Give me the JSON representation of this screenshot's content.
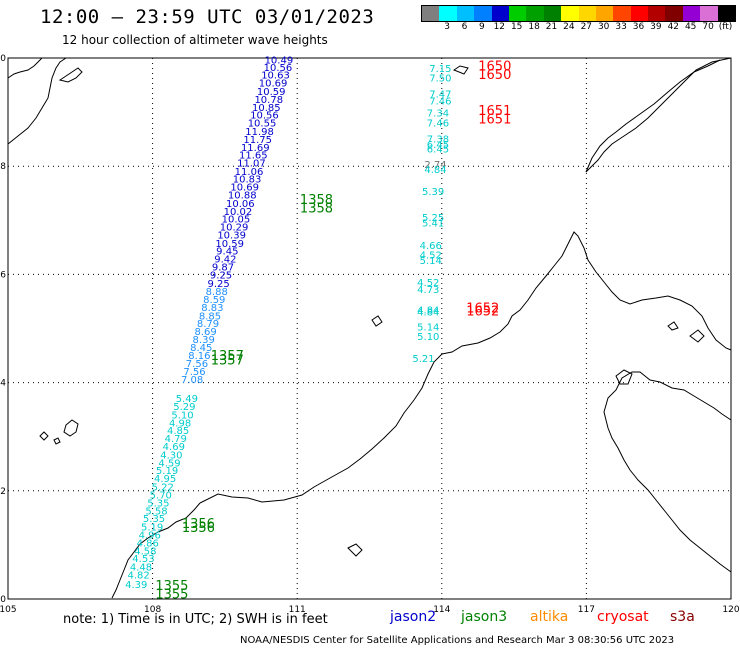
{
  "header": {
    "title": "12:00 – 23:59 UTC 03/01/2023",
    "subtitle": "12 hour collection of altimeter wave heights"
  },
  "legend": {
    "unit": "(ft)",
    "swatches": [
      {
        "label": "",
        "color": "#7f7f7f"
      },
      {
        "label": "3",
        "color": "#00ffff"
      },
      {
        "label": "6",
        "color": "#00bfff"
      },
      {
        "label": "9",
        "color": "#007fff"
      },
      {
        "label": "12",
        "color": "#0000cd"
      },
      {
        "label": "15",
        "color": "#00cd00"
      },
      {
        "label": "18",
        "color": "#00a000"
      },
      {
        "label": "21",
        "color": "#008000"
      },
      {
        "label": "24",
        "color": "#ffff00"
      },
      {
        "label": "27",
        "color": "#ffd700"
      },
      {
        "label": "30",
        "color": "#ffa500"
      },
      {
        "label": "33",
        "color": "#ff4500"
      },
      {
        "label": "36",
        "color": "#ff0000"
      },
      {
        "label": "39",
        "color": "#b20000"
      },
      {
        "label": "42",
        "color": "#800000"
      },
      {
        "label": "45",
        "color": "#9400d3"
      },
      {
        "label": "70",
        "color": "#da70d6"
      },
      {
        "label": "",
        "color": "#000000"
      }
    ],
    "ticks": [
      "3",
      "6",
      "9",
      "12",
      "15",
      "18",
      "21",
      "24",
      "27",
      "30",
      "33",
      "36",
      "39",
      "42",
      "45",
      "70",
      "(ft)"
    ]
  },
  "map": {
    "lon_ticks": [
      "105",
      "108",
      "111",
      "114",
      "117",
      "120"
    ],
    "lat_ticks": [
      "0",
      "2",
      "4",
      "6",
      "8",
      "10"
    ],
    "lon_range": [
      105,
      120
    ],
    "lat_range": [
      0,
      10
    ],
    "colors": {
      "jason2": "#0000cd",
      "jason3": "#008000",
      "altika": "#ff8c00",
      "cryosat": "#ff0000",
      "s3a": "#8b0000",
      "cyan": "#00cdcd",
      "blue": "#1e90ff",
      "gray": "#707070"
    },
    "track1": [
      {
        "lon": 110.62,
        "lat": 9.9,
        "v": "10.49",
        "c": "jason2"
      },
      {
        "lon": 110.6,
        "lat": 9.76,
        "v": "10.56",
        "c": "jason2"
      },
      {
        "lon": 110.55,
        "lat": 9.62,
        "v": "10.63",
        "c": "jason2"
      },
      {
        "lon": 110.5,
        "lat": 9.47,
        "v": "10.69",
        "c": "jason2"
      },
      {
        "lon": 110.46,
        "lat": 9.32,
        "v": "10.59",
        "c": "jason2"
      },
      {
        "lon": 110.41,
        "lat": 9.17,
        "v": "10.78",
        "c": "jason2"
      },
      {
        "lon": 110.36,
        "lat": 9.02,
        "v": "10.85",
        "c": "jason2"
      },
      {
        "lon": 110.32,
        "lat": 8.88,
        "v": "10.56",
        "c": "jason2"
      },
      {
        "lon": 110.27,
        "lat": 8.73,
        "v": "10.55",
        "c": "jason2"
      },
      {
        "lon": 110.22,
        "lat": 8.58,
        "v": "11.98",
        "c": "jason2"
      },
      {
        "lon": 110.18,
        "lat": 8.43,
        "v": "11.75",
        "c": "jason2"
      },
      {
        "lon": 110.13,
        "lat": 8.28,
        "v": "11.69",
        "c": "jason2"
      },
      {
        "lon": 110.09,
        "lat": 8.14,
        "v": "11.65",
        "c": "jason2"
      },
      {
        "lon": 110.05,
        "lat": 7.99,
        "v": "11.07",
        "c": "jason2"
      },
      {
        "lon": 110.0,
        "lat": 7.84,
        "v": "11.06",
        "c": "jason2"
      },
      {
        "lon": 109.96,
        "lat": 7.7,
        "v": "10.83",
        "c": "jason2"
      },
      {
        "lon": 109.91,
        "lat": 7.55,
        "v": "10.69",
        "c": "jason2"
      },
      {
        "lon": 109.86,
        "lat": 7.4,
        "v": "10.88",
        "c": "jason2"
      },
      {
        "lon": 109.82,
        "lat": 7.25,
        "v": "10.06",
        "c": "jason2"
      },
      {
        "lon": 109.77,
        "lat": 7.1,
        "v": "10.02",
        "c": "jason2"
      },
      {
        "lon": 109.73,
        "lat": 6.96,
        "v": "10.05",
        "c": "jason2"
      },
      {
        "lon": 109.69,
        "lat": 6.81,
        "v": "10.29",
        "c": "jason2"
      },
      {
        "lon": 109.64,
        "lat": 6.66,
        "v": "10.39",
        "c": "jason2"
      },
      {
        "lon": 109.6,
        "lat": 6.51,
        "v": "10.59",
        "c": "jason2"
      },
      {
        "lon": 109.55,
        "lat": 6.37,
        "v": "9.45",
        "c": "jason2"
      },
      {
        "lon": 109.51,
        "lat": 6.22,
        "v": "9.42",
        "c": "jason2"
      },
      {
        "lon": 109.46,
        "lat": 6.07,
        "v": "9.87",
        "c": "jason2"
      },
      {
        "lon": 109.42,
        "lat": 5.92,
        "v": "9.25",
        "c": "jason2"
      },
      {
        "lon": 109.37,
        "lat": 5.77,
        "v": "9.25",
        "c": "jason2"
      },
      {
        "lon": 109.33,
        "lat": 5.62,
        "v": "8.88",
        "c": "blue"
      },
      {
        "lon": 109.28,
        "lat": 5.47,
        "v": "8.59",
        "c": "blue"
      },
      {
        "lon": 109.24,
        "lat": 5.32,
        "v": "8.83",
        "c": "blue"
      },
      {
        "lon": 109.19,
        "lat": 5.17,
        "v": "8.85",
        "c": "blue"
      },
      {
        "lon": 109.15,
        "lat": 5.03,
        "v": "8.79",
        "c": "blue"
      },
      {
        "lon": 109.1,
        "lat": 4.88,
        "v": "8.69",
        "c": "blue"
      },
      {
        "lon": 109.06,
        "lat": 4.73,
        "v": "8.39",
        "c": "blue"
      },
      {
        "lon": 109.01,
        "lat": 4.58,
        "v": "8.45",
        "c": "blue"
      },
      {
        "lon": 108.97,
        "lat": 4.44,
        "v": "8.16",
        "c": "blue"
      },
      {
        "lon": 108.92,
        "lat": 4.29,
        "v": "7.56",
        "c": "blue"
      },
      {
        "lon": 108.87,
        "lat": 4.14,
        "v": "7.56",
        "c": "blue"
      },
      {
        "lon": 108.82,
        "lat": 3.99,
        "v": "7.08",
        "c": "blue"
      },
      {
        "lon": 108.71,
        "lat": 3.64,
        "v": "5.49",
        "c": "cyan"
      },
      {
        "lon": 108.66,
        "lat": 3.49,
        "v": "5.29",
        "c": "cyan"
      },
      {
        "lon": 108.62,
        "lat": 3.34,
        "v": "5.10",
        "c": "cyan"
      },
      {
        "lon": 108.57,
        "lat": 3.19,
        "v": "4.98",
        "c": "cyan"
      },
      {
        "lon": 108.53,
        "lat": 3.05,
        "v": "4.85",
        "c": "cyan"
      },
      {
        "lon": 108.48,
        "lat": 2.9,
        "v": "4.79",
        "c": "cyan"
      },
      {
        "lon": 108.44,
        "lat": 2.75,
        "v": "4.69",
        "c": "cyan"
      },
      {
        "lon": 108.39,
        "lat": 2.6,
        "v": "4.30",
        "c": "cyan"
      },
      {
        "lon": 108.35,
        "lat": 2.45,
        "v": "4.59",
        "c": "cyan"
      },
      {
        "lon": 108.3,
        "lat": 2.31,
        "v": "5.19",
        "c": "cyan"
      },
      {
        "lon": 108.26,
        "lat": 2.16,
        "v": "4.95",
        "c": "cyan"
      },
      {
        "lon": 108.21,
        "lat": 2.01,
        "v": "5.22",
        "c": "cyan"
      },
      {
        "lon": 108.17,
        "lat": 1.86,
        "v": "5.70",
        "c": "cyan"
      },
      {
        "lon": 108.12,
        "lat": 1.71,
        "v": "5.35",
        "c": "cyan"
      },
      {
        "lon": 108.08,
        "lat": 1.56,
        "v": "5.58",
        "c": "cyan"
      },
      {
        "lon": 108.03,
        "lat": 1.42,
        "v": "5.35",
        "c": "cyan"
      },
      {
        "lon": 107.99,
        "lat": 1.27,
        "v": "5.19",
        "c": "cyan"
      },
      {
        "lon": 107.94,
        "lat": 1.12,
        "v": "4.96",
        "c": "cyan"
      },
      {
        "lon": 107.9,
        "lat": 0.97,
        "v": "4.86",
        "c": "cyan"
      },
      {
        "lon": 107.85,
        "lat": 0.82,
        "v": "4.58",
        "c": "cyan"
      },
      {
        "lon": 107.81,
        "lat": 0.68,
        "v": "4.53",
        "c": "cyan"
      },
      {
        "lon": 107.76,
        "lat": 0.53,
        "v": "4.48",
        "c": "cyan"
      },
      {
        "lon": 107.71,
        "lat": 0.38,
        "v": "4.82",
        "c": "cyan"
      },
      {
        "lon": 107.66,
        "lat": 0.2,
        "v": "4.39",
        "c": "cyan"
      }
    ],
    "track2": [
      {
        "lon": 113.97,
        "lat": 9.74,
        "v": "7.15",
        "c": "cyan"
      },
      {
        "lon": 113.97,
        "lat": 9.57,
        "v": "7.50",
        "c": "cyan"
      },
      {
        "lon": 113.97,
        "lat": 9.27,
        "v": "7.47",
        "c": "cyan"
      },
      {
        "lon": 113.97,
        "lat": 9.14,
        "v": "7.46",
        "c": "cyan"
      },
      {
        "lon": 113.92,
        "lat": 8.92,
        "v": "7.34",
        "c": "cyan"
      },
      {
        "lon": 113.92,
        "lat": 8.73,
        "v": "7.46",
        "c": "cyan"
      },
      {
        "lon": 113.92,
        "lat": 8.44,
        "v": "7.38",
        "c": "cyan"
      },
      {
        "lon": 113.92,
        "lat": 8.34,
        "v": "6.45",
        "c": "cyan"
      },
      {
        "lon": 113.92,
        "lat": 8.25,
        "v": "6.45",
        "c": "cyan"
      },
      {
        "lon": 113.87,
        "lat": 7.97,
        "v": "2.74",
        "c": "gray"
      },
      {
        "lon": 113.87,
        "lat": 7.87,
        "v": "4.84",
        "c": "cyan"
      },
      {
        "lon": 113.82,
        "lat": 7.47,
        "v": "5.39",
        "c": "cyan"
      },
      {
        "lon": 113.82,
        "lat": 6.99,
        "v": "5.25",
        "c": "cyan"
      },
      {
        "lon": 113.82,
        "lat": 6.89,
        "v": "5.41",
        "c": "cyan"
      },
      {
        "lon": 113.77,
        "lat": 6.47,
        "v": "4.66",
        "c": "cyan"
      },
      {
        "lon": 113.77,
        "lat": 6.29,
        "v": "4.52",
        "c": "cyan"
      },
      {
        "lon": 113.77,
        "lat": 6.19,
        "v": "5.14",
        "c": "cyan"
      },
      {
        "lon": 113.72,
        "lat": 5.79,
        "v": "4.52",
        "c": "cyan"
      },
      {
        "lon": 113.72,
        "lat": 5.66,
        "v": "4.73",
        "c": "cyan"
      },
      {
        "lon": 113.72,
        "lat": 5.28,
        "v": "4.84",
        "c": "cyan"
      },
      {
        "lon": 113.72,
        "lat": 5.24,
        "v": "4.84",
        "c": "cyan"
      },
      {
        "lon": 113.72,
        "lat": 4.96,
        "v": "5.14",
        "c": "cyan"
      },
      {
        "lon": 113.72,
        "lat": 4.79,
        "v": "5.10",
        "c": "cyan"
      },
      {
        "lon": 113.62,
        "lat": 4.38,
        "v": "5.21",
        "c": "cyan"
      }
    ],
    "time_labels": [
      {
        "lon": 115.1,
        "lat": 9.77,
        "v": "1650",
        "c": "cryosat"
      },
      {
        "lon": 115.1,
        "lat": 9.61,
        "v": "1650",
        "c": "cryosat"
      },
      {
        "lon": 115.1,
        "lat": 8.95,
        "v": "1651",
        "c": "cryosat"
      },
      {
        "lon": 115.1,
        "lat": 8.79,
        "v": "1651",
        "c": "cryosat"
      },
      {
        "lon": 114.85,
        "lat": 5.3,
        "v": "1652",
        "c": "cryosat"
      },
      {
        "lon": 114.85,
        "lat": 5.24,
        "v": "1652",
        "c": "cryosat"
      },
      {
        "lon": 111.4,
        "lat": 7.3,
        "v": "1358",
        "c": "jason3"
      },
      {
        "lon": 111.4,
        "lat": 7.14,
        "v": "1358",
        "c": "jason3"
      },
      {
        "lon": 109.55,
        "lat": 4.42,
        "v": "1357",
        "c": "jason3"
      },
      {
        "lon": 109.55,
        "lat": 4.33,
        "v": "1357",
        "c": "jason3"
      },
      {
        "lon": 108.95,
        "lat": 1.31,
        "v": "1356",
        "c": "jason3"
      },
      {
        "lon": 108.95,
        "lat": 1.24,
        "v": "1356",
        "c": "jason3"
      },
      {
        "lon": 108.4,
        "lat": 0.17,
        "v": "1355",
        "c": "jason3"
      },
      {
        "lon": 108.4,
        "lat": 0.01,
        "v": "1355",
        "c": "jason3"
      }
    ]
  },
  "bottom": {
    "note": "note: 1) Time is in UTC; 2) SWH is in feet",
    "satellites": [
      {
        "name": "jason2",
        "color": "#0000cd"
      },
      {
        "name": "jason3",
        "color": "#008000"
      },
      {
        "name": "altika",
        "color": "#ff8c00"
      },
      {
        "name": "cryosat",
        "color": "#ff0000"
      },
      {
        "name": "s3a",
        "color": "#8b0000"
      }
    ],
    "footer": "NOAA/NESDIS Center for Satellite Applications and Research   Mar  3 08:30:56 UTC 2023"
  }
}
